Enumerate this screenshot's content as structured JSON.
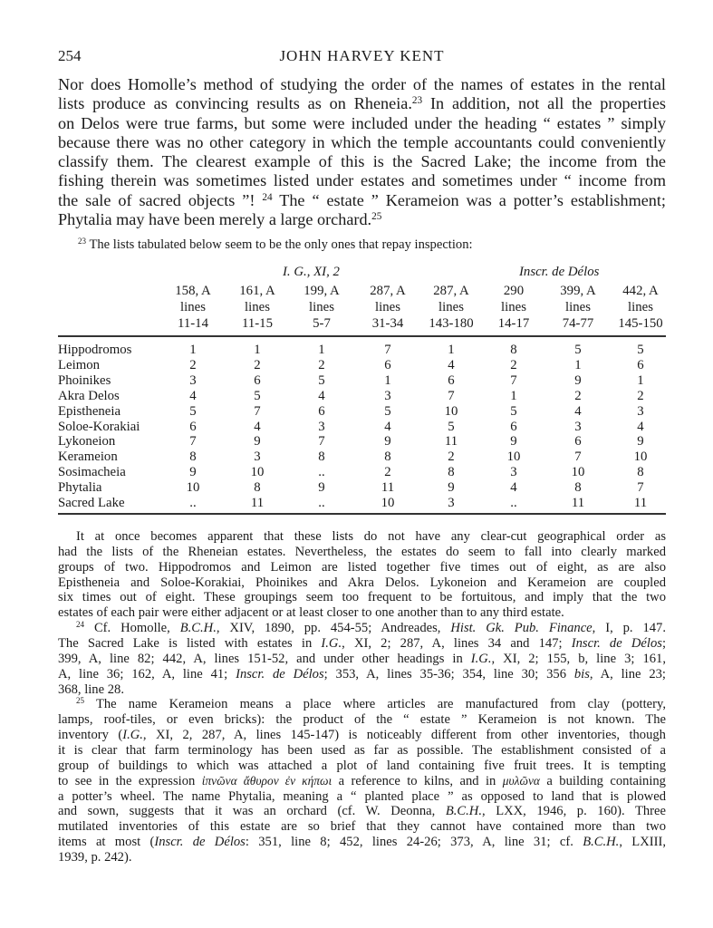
{
  "running_head": {
    "page_number": "254",
    "title": "JOHN HARVEY KENT"
  },
  "main_paragraph": [
    [
      "Nor does Homolle’s method of studying the order of the names of estates in the rental"
    ],
    [
      "lists produce as convincing results as on Rheneia.",
      {
        "sup": "23"
      },
      "  In addition, not all the properties"
    ],
    [
      "on Delos were true farms, but some were included under the heading “ estates ” simply"
    ],
    [
      "because there was no other category in which the temple accountants could conveniently"
    ],
    [
      "classify them.  The clearest example of this is the Sacred Lake; the income from the"
    ],
    [
      "fishing therein was sometimes listed under estates and sometimes under “ income from"
    ],
    [
      "the sale of sacred objects ”! ",
      {
        "sup": "24"
      },
      "  The “ estate ” Kerameion was a potter’s establishment;"
    ],
    [
      "Phytalia may have been merely a large orchard.",
      {
        "sup": "25"
      }
    ]
  ],
  "footnote_23": {
    "marker": "23",
    "text": "The lists tabulated below seem to be the only ones that repay inspection:"
  },
  "table": {
    "groups": [
      "I. G., XI, 2",
      "Inscr. de Délos"
    ],
    "columns": [
      [
        "158, A",
        "lines",
        "11-14"
      ],
      [
        "161, A",
        "lines",
        "11-15"
      ],
      [
        "199, A",
        "lines",
        "5-7"
      ],
      [
        "287, A",
        "lines",
        "31-34"
      ],
      [
        "287, A",
        "lines",
        "143-180"
      ],
      [
        "290",
        "lines",
        "14-17"
      ],
      [
        "399, A",
        "lines",
        "74-77"
      ],
      [
        "442, A",
        "lines",
        "145-150"
      ]
    ],
    "rows": [
      {
        "estate": "Hippodromos",
        "values": [
          "1",
          "1",
          "1",
          "7",
          "1",
          "8",
          "5",
          "5"
        ]
      },
      {
        "estate": "Leimon",
        "values": [
          "2",
          "2",
          "2",
          "6",
          "4",
          "2",
          "1",
          "6"
        ]
      },
      {
        "estate": "Phoinikes",
        "values": [
          "3",
          "6",
          "5",
          "1",
          "6",
          "7",
          "9",
          "1"
        ]
      },
      {
        "estate": "Akra Delos",
        "values": [
          "4",
          "5",
          "4",
          "3",
          "7",
          "1",
          "2",
          "2"
        ]
      },
      {
        "estate": "Epistheneia",
        "values": [
          "5",
          "7",
          "6",
          "5",
          "10",
          "5",
          "4",
          "3"
        ]
      },
      {
        "estate": "Soloe-Korakiai",
        "values": [
          "6",
          "4",
          "3",
          "4",
          "5",
          "6",
          "3",
          "4"
        ]
      },
      {
        "estate": "Lykoneion",
        "values": [
          "7",
          "9",
          "7",
          "9",
          "11",
          "9",
          "6",
          "9"
        ]
      },
      {
        "estate": "Kerameion",
        "values": [
          "8",
          "3",
          "8",
          "8",
          "2",
          "10",
          "7",
          "10"
        ]
      },
      {
        "estate": "Sosimacheia",
        "values": [
          "9",
          "10",
          "..",
          "2",
          "8",
          "3",
          "10",
          "8"
        ]
      },
      {
        "estate": "Phytalia",
        "values": [
          "10",
          "8",
          "9",
          "11",
          "9",
          "4",
          "8",
          "7"
        ]
      },
      {
        "estate": "Sacred Lake",
        "values": [
          "..",
          "11",
          "..",
          "10",
          "3",
          "..",
          "11",
          "11"
        ]
      }
    ]
  },
  "notes": [
    {
      "indent": true,
      "lines": [
        [
          "It at once becomes apparent that these lists do not have any clear-cut geographical order as"
        ],
        [
          "had the lists of the Rheneian estates.  Nevertheless, the estates do seem to fall into clearly marked"
        ],
        [
          "groups of two.  Hippodromos and Leimon are listed together five times out of eight, as are also"
        ],
        [
          "Epistheneia and Soloe-Korakiai, Phoinikes and Akra Delos.  Lykoneion and Kerameion are coupled"
        ],
        [
          "six times out of eight.  These groupings seem too frequent to be fortuitous, and imply that the two"
        ],
        [
          "estates of each pair were either adjacent or at least closer to one another than to any third estate."
        ]
      ]
    },
    {
      "indent": true,
      "lines": [
        [
          {
            "sup": "24"
          },
          " Cf. Homolle, ",
          {
            "it": "B.C.H."
          },
          ", XIV, 1890, pp. 454-55; Andreades, ",
          {
            "it": "Hist. Gk. Pub. Finance"
          },
          ", I, p. 147."
        ],
        [
          "The Sacred Lake is listed with estates in ",
          {
            "it": "I.G."
          },
          ", XI, 2; 287, A, lines 34 and 147; ",
          {
            "it": "Inscr. de Délos"
          },
          ";"
        ],
        [
          "399, A, line 82; 442, A, lines 151-52, and under other headings in ",
          {
            "it": "I.G."
          },
          ", XI, 2; 155, b, line 3; 161,"
        ],
        [
          "A, line 36; 162, A, line 41; ",
          {
            "it": "Inscr. de Délos"
          },
          "; 353, A, lines 35-36; 354, line 30; 356 ",
          {
            "it": "bis"
          },
          ", A, line 23;"
        ],
        [
          "368, line 28."
        ]
      ]
    },
    {
      "indent": true,
      "lines": [
        [
          {
            "sup": "25"
          },
          " The name Kerameion means a place where articles are manufactured from clay (pottery,"
        ],
        [
          "lamps, roof-tiles, or even bricks): the product of the “ estate ” Kerameion is not known.  The"
        ],
        [
          "inventory (",
          {
            "it": "I.G."
          },
          ", XI, 2, 287, A, lines 145-147) is noticeably different from other inventories, though"
        ],
        [
          "it is clear that farm terminology has been used as far as possible.  The establishment consisted of a"
        ],
        [
          "group of buildings to which was attached a plot of land containing five fruit trees.  It is tempting"
        ],
        [
          "to see in the expression ",
          {
            "gr": "ἰπνῶνα ἄθυρον ἐν κήπωι"
          },
          " a reference to kilns, and in ",
          {
            "gr": "μυλῶνα"
          },
          " a building containing"
        ],
        [
          "a potter’s wheel.  The name Phytalia, meaning a “ planted place ” as opposed to land that is plowed"
        ],
        [
          "and sown, suggests that it was an orchard (cf. W. Deonna, ",
          {
            "it": "B.C.H."
          },
          ", LXX, 1946, p. 160).  Three"
        ],
        [
          "mutilated inventories of this estate are so brief that they cannot have contained more than two"
        ],
        [
          "items at most (",
          {
            "it": "Inscr. de Délos"
          },
          ": 351, line 8; 452, lines 24-26; 373, A, line 31; cf. ",
          {
            "it": "B.C.H."
          },
          ", LXIII,"
        ],
        [
          "1939, p. 242)."
        ]
      ]
    }
  ]
}
